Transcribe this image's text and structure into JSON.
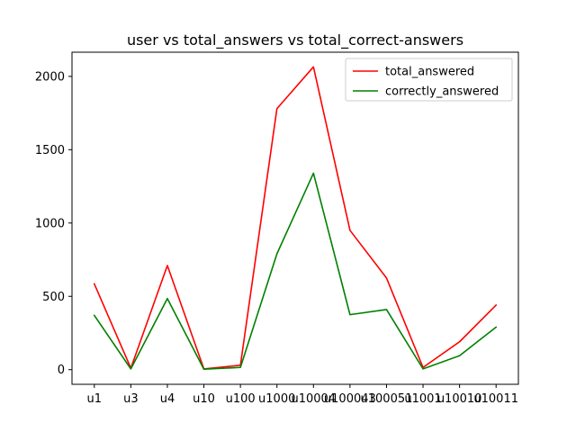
{
  "chart_data": {
    "type": "line",
    "title": "user vs total_answers vs total_correct-answers",
    "xlabel": "",
    "ylabel": "",
    "categories": [
      "u1",
      "u3",
      "u4",
      "u10",
      "u100",
      "u1000",
      "u10004",
      "u100043",
      "u100051",
      "u1001",
      "u10010",
      "u10011"
    ],
    "ylim": [
      -100,
      2165
    ],
    "yticks": [
      0,
      500,
      1000,
      1500,
      2000
    ],
    "grid": false,
    "legend_position": "top-right",
    "series": [
      {
        "name": "total_answered",
        "color": "#ff0000",
        "values": [
          585,
          10,
          710,
          5,
          30,
          1780,
          2065,
          950,
          625,
          15,
          190,
          440
        ]
      },
      {
        "name": "correctly_answered",
        "color": "#008000",
        "values": [
          370,
          5,
          485,
          3,
          15,
          790,
          1340,
          375,
          410,
          5,
          95,
          290
        ]
      }
    ]
  }
}
